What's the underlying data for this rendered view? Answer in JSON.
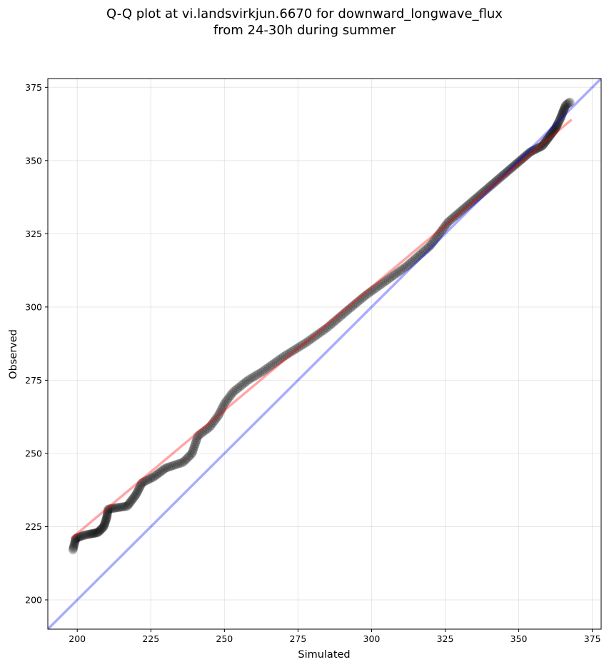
{
  "chart_data": {
    "type": "scatter",
    "title_line1": "Q-Q plot at vi.landsvirkjun.6670 for downward_longwave_flux",
    "title_line2": "from 24-30h during summer",
    "xlabel": "Simulated",
    "ylabel": "Observed",
    "xlim": [
      190,
      378
    ],
    "ylim": [
      190,
      378
    ],
    "xticks": [
      200,
      225,
      250,
      275,
      300,
      325,
      350,
      375
    ],
    "yticks": [
      200,
      225,
      250,
      275,
      300,
      325,
      350,
      375
    ],
    "grid": true,
    "identity_line": {
      "color": "#0000ff",
      "alpha": 0.33,
      "from": [
        190,
        190
      ],
      "to": [
        378,
        378
      ]
    },
    "fit_line": {
      "color": "#ff0000",
      "alpha": 0.35,
      "from": [
        198,
        221
      ],
      "to": [
        368,
        364
      ]
    },
    "marker_color": "#000000",
    "quantile_anchors": [
      [
        198.5,
        217
      ],
      [
        199.5,
        221
      ],
      [
        202,
        222
      ],
      [
        207,
        223
      ],
      [
        209,
        225
      ],
      [
        210,
        228
      ],
      [
        210.5,
        231
      ],
      [
        217,
        232
      ],
      [
        220,
        236
      ],
      [
        222,
        240
      ],
      [
        226,
        242
      ],
      [
        230,
        245
      ],
      [
        236,
        247
      ],
      [
        239,
        250
      ],
      [
        241,
        256
      ],
      [
        245,
        259
      ],
      [
        248,
        263
      ],
      [
        250,
        267
      ],
      [
        253,
        271
      ],
      [
        258,
        275
      ],
      [
        263,
        278
      ],
      [
        270,
        283
      ],
      [
        278,
        288
      ],
      [
        285,
        293
      ],
      [
        292,
        299
      ],
      [
        298,
        304
      ],
      [
        305,
        309
      ],
      [
        312,
        314
      ],
      [
        320,
        321
      ],
      [
        326,
        329
      ],
      [
        333,
        335
      ],
      [
        340,
        341
      ],
      [
        347,
        347
      ],
      [
        354,
        353
      ],
      [
        358,
        355
      ],
      [
        361,
        359
      ],
      [
        362.5,
        361
      ],
      [
        364,
        364
      ],
      [
        366,
        369
      ],
      [
        367.5,
        370
      ]
    ],
    "n_points": 420
  }
}
